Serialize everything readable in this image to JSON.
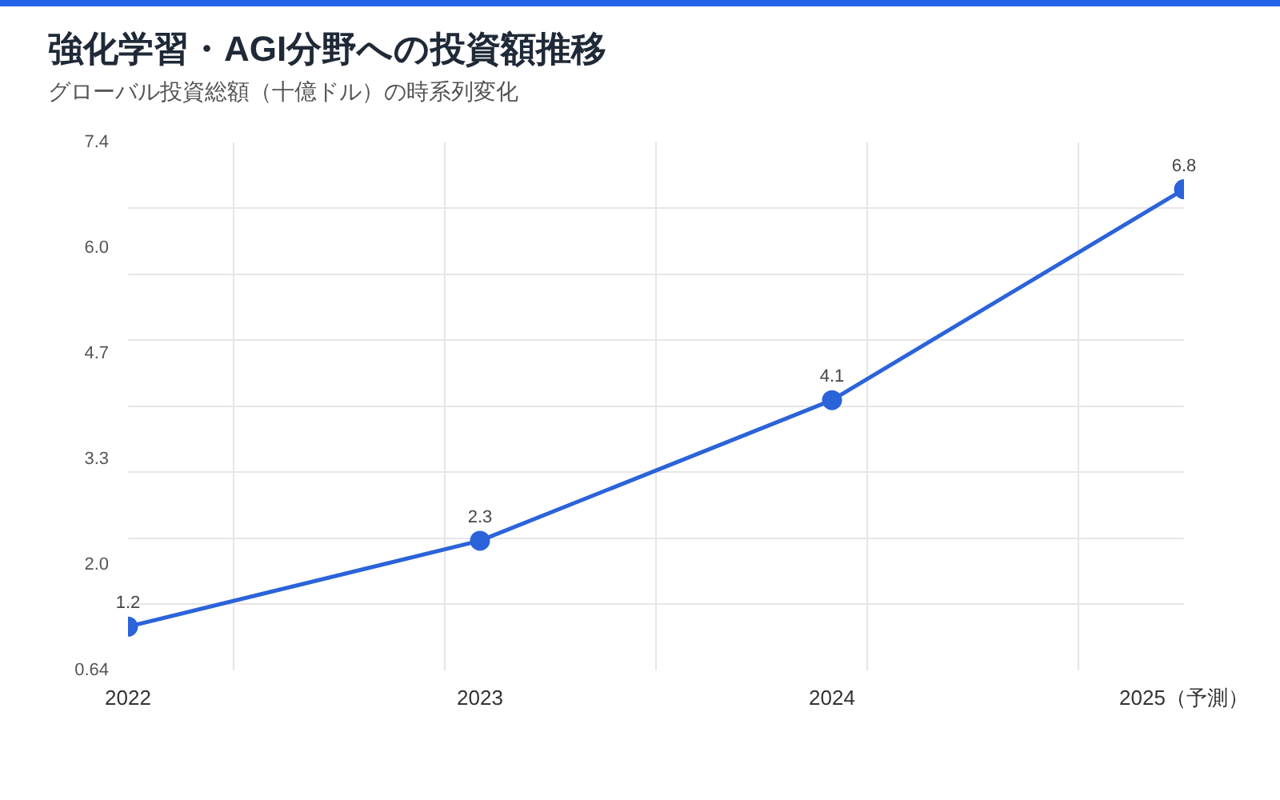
{
  "chart_data": {
    "type": "line",
    "title": "強化学習・AGI分野への投資額推移",
    "subtitle": "グローバル投資総額（十億ドル）の時系列変化",
    "x": [
      2022,
      2023,
      2024,
      2025
    ],
    "series": [
      {
        "color": "#2b63d9",
        "values": [
          1.2,
          2.3,
          4.1,
          6.8
        ]
      }
    ],
    "xlim": [
      2022,
      2025
    ],
    "xticks": [
      2022,
      {
        "value": 2022.3,
        "label": null
      },
      {
        "value": 2022.9,
        "label": null
      },
      2023,
      {
        "value": 2023.5,
        "label": null
      },
      2024,
      {
        "value": 2024.1,
        "label": null
      },
      {
        "value": 2024.7,
        "label": null
      },
      {
        "value": 2025,
        "label": "2025（予測）"
      }
    ],
    "ylim": [
      0.64,
      7.4
    ],
    "yticks": [
      0.64,
      {
        "value": 1.49,
        "label": null
      },
      {
        "value": 1.99,
        "label": "2.0"
      },
      {
        "value": 2.33,
        "label": null
      },
      {
        "value": 3.18,
        "label": null
      },
      {
        "value": 3.34,
        "label": "3.3"
      },
      {
        "value": 4.02,
        "label": null
      },
      4.7,
      {
        "value": 4.87,
        "label": null
      },
      {
        "value": 5.71,
        "label": null
      },
      {
        "value": 6.05,
        "label": "6.0"
      },
      {
        "value": 6.56,
        "label": null
      },
      7.4
    ],
    "grid": true,
    "marker": "circle",
    "data_labels": true
  }
}
